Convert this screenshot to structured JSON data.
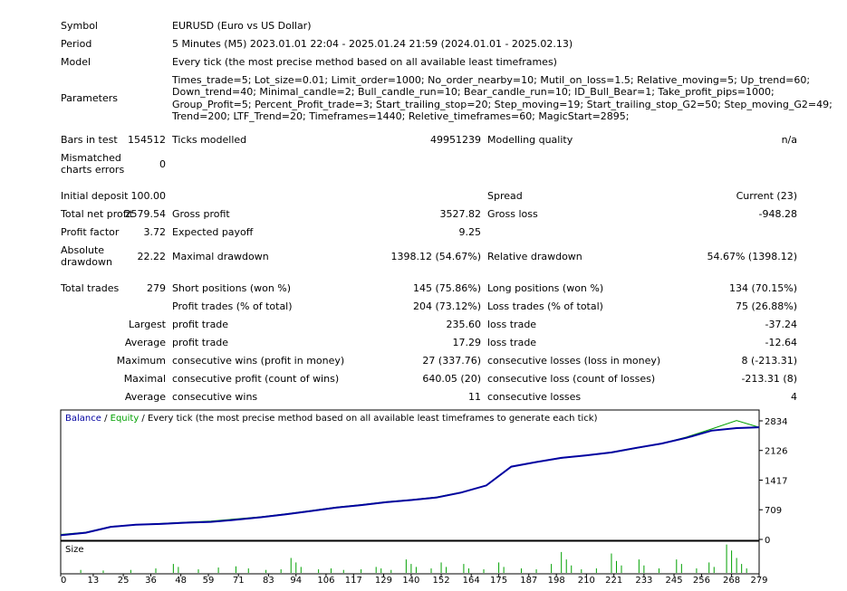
{
  "report": {
    "symbol_label": "Symbol",
    "symbol_value": "EURUSD (Euro vs US Dollar)",
    "period_label": "Period",
    "period_value": "5 Minutes (M5) 2023.01.01 22:04 - 2025.01.24 21:59 (2024.01.01 - 2025.02.13)",
    "model_label": "Model",
    "model_value": "Every tick (the most precise method based on all available least timeframes)",
    "parameters_label": "Parameters",
    "parameters_value": "Times_trade=5; Lot_size=0.01; Limit_order=1000; No_order_nearby=10; Mutil_on_loss=1.5; Relative_moving=5; Up_trend=60; Down_trend=40; Minimal_candle=2; Bull_candle_run=10; Bear_candle_run=10; ID_Bull_Bear=1; Take_profit_pips=1000; Group_Profit=5; Percent_Profit_trade=3; Start_trailing_stop=20; Step_moving=19; Start_trailing_stop_G2=50; Step_moving_G2=49; Trend=200; LTF_Trend=20; Timeframes=1440; Reletive_timeframes=60; MagicStart=2895;",
    "bars_label": "Bars in test",
    "bars_value": "154512",
    "ticks_label": "Ticks modelled",
    "ticks_value": "49951239",
    "quality_label": "Modelling quality",
    "quality_value": "n/a",
    "mismatch_label_1": "Mismatched",
    "mismatch_label_2": "charts errors",
    "mismatch_value": "0",
    "deposit_label": "Initial deposit",
    "deposit_value": "100.00",
    "spread_label": "Spread",
    "spread_value": "Current (23)",
    "net_label": "Total net profit",
    "net_value": "2579.54",
    "gross_profit_label": "Gross profit",
    "gross_profit_value": "3527.82",
    "gross_loss_label": "Gross loss",
    "gross_loss_value": "-948.28",
    "pf_label": "Profit factor",
    "pf_value": "3.72",
    "ep_label": "Expected payoff",
    "ep_value": "9.25",
    "abs_dd_label_1": "Absolute",
    "abs_dd_label_2": "drawdown",
    "abs_dd_value": "22.22",
    "max_dd_label": "Maximal drawdown",
    "max_dd_value": "1398.12 (54.67%)",
    "rel_dd_label": "Relative drawdown",
    "rel_dd_value": "54.67% (1398.12)",
    "total_trades_label": "Total trades",
    "total_trades_value": "279",
    "short_label": "Short positions (won %)",
    "short_value": "145 (75.86%)",
    "long_label": "Long positions (won %)",
    "long_value": "134 (70.15%)",
    "profit_trades_label": "Profit trades (% of total)",
    "profit_trades_value": "204 (73.12%)",
    "loss_trades_label": "Loss trades (% of total)",
    "loss_trades_value": "75 (26.88%)",
    "largest_label": "Largest",
    "largest_profit_label": "profit trade",
    "largest_profit_value": "235.60",
    "largest_loss_label": "loss trade",
    "largest_loss_value": "-37.24",
    "average_label": "Average",
    "average_profit_label": "profit trade",
    "average_profit_value": "17.29",
    "average_loss_label": "loss trade",
    "average_loss_value": "-12.64",
    "maximum_label": "Maximum",
    "max_cons_wins_label": "consecutive wins (profit in money)",
    "max_cons_wins_value": "27 (337.76)",
    "max_cons_losses_label": "consecutive losses (loss in money)",
    "max_cons_losses_value": "8 (-213.31)",
    "maximal_label": "Maximal",
    "maximal_cons_profit_label": "consecutive profit (count of wins)",
    "maximal_cons_profit_value": "640.05 (20)",
    "maximal_cons_loss_label": "consecutive loss (count of losses)",
    "maximal_cons_loss_value": "-213.31 (8)",
    "average2_label": "Average",
    "avg_cons_wins_label": "consecutive wins",
    "avg_cons_wins_value": "11",
    "avg_cons_losses_label": "consecutive losses",
    "avg_cons_losses_value": "4"
  },
  "chart_data": {
    "type": "line",
    "legend": {
      "balance": "Balance",
      "sep1": " / ",
      "equity": "Equity",
      "sep2": " / ",
      "rest": "Every tick (the most precise method based on all available least timeframes to generate each tick)"
    },
    "colors": {
      "balance": "#0000a0",
      "equity": "#00a000",
      "size": "#00a000"
    },
    "size_label": "Size",
    "ylim": [
      0,
      2834
    ],
    "xlim": [
      0,
      279
    ],
    "yticks": [
      "0",
      "709",
      "1417",
      "2126",
      "2834"
    ],
    "xticks": [
      "0",
      "13",
      "25",
      "36",
      "48",
      "59",
      "71",
      "83",
      "94",
      "106",
      "117",
      "129",
      "140",
      "152",
      "164",
      "175",
      "187",
      "198",
      "210",
      "221",
      "233",
      "245",
      "256",
      "268",
      "279"
    ],
    "x": [
      0,
      10,
      20,
      30,
      40,
      50,
      60,
      70,
      80,
      90,
      100,
      110,
      120,
      130,
      140,
      150,
      160,
      170,
      180,
      190,
      200,
      210,
      220,
      230,
      240,
      250,
      260,
      270,
      279
    ],
    "series": [
      {
        "name": "Balance",
        "values": [
          100,
          160,
          300,
          350,
          370,
          400,
          420,
          470,
          530,
          600,
          680,
          760,
          820,
          890,
          940,
          1000,
          1120,
          1290,
          1740,
          1850,
          1950,
          2010,
          2080,
          2190,
          2290,
          2430,
          2600,
          2660,
          2680
        ]
      },
      {
        "name": "Equity",
        "values": [
          120,
          170,
          310,
          350,
          380,
          410,
          440,
          490,
          540,
          610,
          690,
          770,
          830,
          900,
          950,
          1010,
          1130,
          1290,
          1740,
          1850,
          1940,
          2010,
          2070,
          2180,
          2290,
          2450,
          2640,
          2840,
          2680
        ]
      }
    ],
    "size_bars": [
      {
        "x": 8,
        "v": 0.1
      },
      {
        "x": 17,
        "v": 0.08
      },
      {
        "x": 28,
        "v": 0.1
      },
      {
        "x": 38,
        "v": 0.15
      },
      {
        "x": 45,
        "v": 0.3
      },
      {
        "x": 47,
        "v": 0.2
      },
      {
        "x": 55,
        "v": 0.12
      },
      {
        "x": 63,
        "v": 0.18
      },
      {
        "x": 70,
        "v": 0.22
      },
      {
        "x": 75,
        "v": 0.15
      },
      {
        "x": 82,
        "v": 0.1
      },
      {
        "x": 88,
        "v": 0.12
      },
      {
        "x": 92,
        "v": 0.5
      },
      {
        "x": 94,
        "v": 0.35
      },
      {
        "x": 96,
        "v": 0.2
      },
      {
        "x": 103,
        "v": 0.12
      },
      {
        "x": 108,
        "v": 0.15
      },
      {
        "x": 113,
        "v": 0.1
      },
      {
        "x": 120,
        "v": 0.12
      },
      {
        "x": 126,
        "v": 0.2
      },
      {
        "x": 128,
        "v": 0.15
      },
      {
        "x": 132,
        "v": 0.1
      },
      {
        "x": 138,
        "v": 0.45
      },
      {
        "x": 140,
        "v": 0.3
      },
      {
        "x": 142,
        "v": 0.2
      },
      {
        "x": 148,
        "v": 0.15
      },
      {
        "x": 152,
        "v": 0.35
      },
      {
        "x": 154,
        "v": 0.2
      },
      {
        "x": 161,
        "v": 0.3
      },
      {
        "x": 163,
        "v": 0.15
      },
      {
        "x": 169,
        "v": 0.12
      },
      {
        "x": 175,
        "v": 0.35
      },
      {
        "x": 177,
        "v": 0.2
      },
      {
        "x": 184,
        "v": 0.15
      },
      {
        "x": 190,
        "v": 0.12
      },
      {
        "x": 196,
        "v": 0.3
      },
      {
        "x": 200,
        "v": 0.7
      },
      {
        "x": 202,
        "v": 0.45
      },
      {
        "x": 204,
        "v": 0.25
      },
      {
        "x": 208,
        "v": 0.12
      },
      {
        "x": 214,
        "v": 0.15
      },
      {
        "x": 220,
        "v": 0.65
      },
      {
        "x": 222,
        "v": 0.4
      },
      {
        "x": 224,
        "v": 0.25
      },
      {
        "x": 231,
        "v": 0.45
      },
      {
        "x": 233,
        "v": 0.25
      },
      {
        "x": 239,
        "v": 0.15
      },
      {
        "x": 246,
        "v": 0.45
      },
      {
        "x": 248,
        "v": 0.3
      },
      {
        "x": 254,
        "v": 0.15
      },
      {
        "x": 259,
        "v": 0.35
      },
      {
        "x": 261,
        "v": 0.2
      },
      {
        "x": 266,
        "v": 0.95
      },
      {
        "x": 268,
        "v": 0.75
      },
      {
        "x": 270,
        "v": 0.5
      },
      {
        "x": 272,
        "v": 0.3
      },
      {
        "x": 274,
        "v": 0.15
      }
    ]
  }
}
